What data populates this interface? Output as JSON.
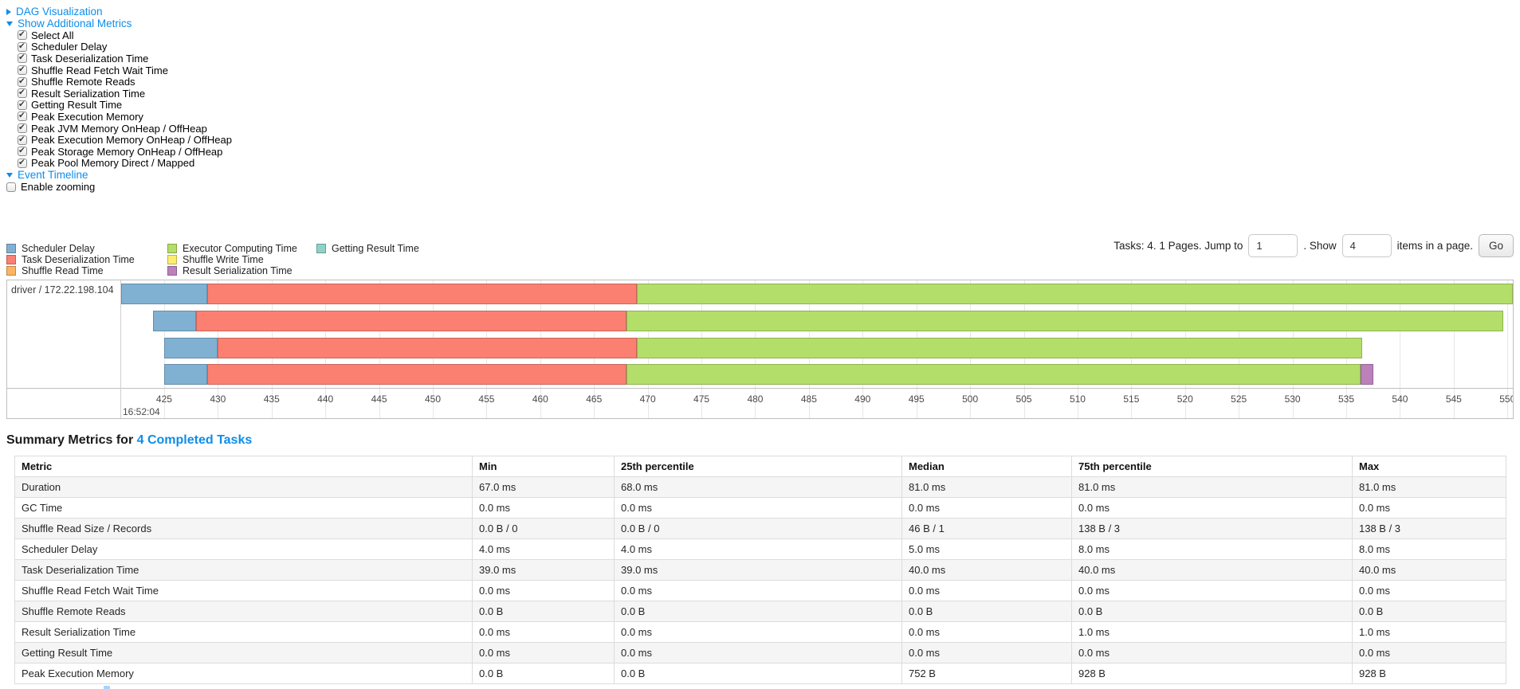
{
  "colors": {
    "link": "#0e8de9",
    "scheduler_delay": "#80B1D3",
    "task_deserialization": "#FB8072",
    "shuffle_read": "#FDB462",
    "executor_computing": "#B3DE69",
    "shuffle_write": "#FFED6F",
    "result_serialization": "#BC80BD",
    "getting_result": "#8DD3C7"
  },
  "controls": {
    "dag_label": "DAG Visualization",
    "metrics_label": "Show Additional Metrics",
    "metric_checkboxes": [
      "Select All",
      "Scheduler Delay",
      "Task Deserialization Time",
      "Shuffle Read Fetch Wait Time",
      "Shuffle Remote Reads",
      "Result Serialization Time",
      "Getting Result Time",
      "Peak Execution Memory",
      "Peak JVM Memory OnHeap / OffHeap",
      "Peak Execution Memory OnHeap / OffHeap",
      "Peak Storage Memory OnHeap / OffHeap",
      "Peak Pool Memory Direct / Mapped"
    ],
    "event_timeline_label": "Event Timeline",
    "enable_zooming_label": "Enable zooming"
  },
  "pagination": {
    "tasks_text": "Tasks: 4. 1 Pages. Jump to",
    "jump_value": "1",
    "between_text": ". Show",
    "show_value": "4",
    "after_text": "items in a page.",
    "go_label": "Go"
  },
  "legend": {
    "columns": [
      [
        {
          "label": "Scheduler Delay",
          "color_key": "scheduler_delay"
        },
        {
          "label": "Task Deserialization Time",
          "color_key": "task_deserialization"
        },
        {
          "label": "Shuffle Read Time",
          "color_key": "shuffle_read"
        }
      ],
      [
        {
          "label": "Executor Computing Time",
          "color_key": "executor_computing"
        },
        {
          "label": "Shuffle Write Time",
          "color_key": "shuffle_write"
        },
        {
          "label": "Result Serialization Time",
          "color_key": "result_serialization"
        }
      ],
      [
        {
          "label": "Getting Result Time",
          "color_key": "getting_result"
        }
      ]
    ]
  },
  "timeline": {
    "group_label": "driver / 172.22.198.104",
    "axis": {
      "domain_start": 421,
      "domain_end": 550.5,
      "first_tick": 425,
      "tick_interval": 5,
      "last_tick": 550,
      "date_label": "16:52:04"
    },
    "tasks": [
      {
        "segments": [
          {
            "type": "scheduler_delay",
            "start": 421,
            "end": 429
          },
          {
            "type": "task_deserialization",
            "start": 429,
            "end": 469
          },
          {
            "type": "executor_computing",
            "start": 469,
            "end": 551
          }
        ]
      },
      {
        "segments": [
          {
            "type": "scheduler_delay",
            "start": 424,
            "end": 428
          },
          {
            "type": "task_deserialization",
            "start": 428,
            "end": 468
          },
          {
            "type": "executor_computing",
            "start": 468,
            "end": 549.6
          }
        ]
      },
      {
        "segments": [
          {
            "type": "scheduler_delay",
            "start": 425,
            "end": 430
          },
          {
            "type": "task_deserialization",
            "start": 430,
            "end": 469
          },
          {
            "type": "executor_computing",
            "start": 469,
            "end": 536.5
          }
        ]
      },
      {
        "segments": [
          {
            "type": "scheduler_delay",
            "start": 425,
            "end": 429
          },
          {
            "type": "task_deserialization",
            "start": 429,
            "end": 468
          },
          {
            "type": "executor_computing",
            "start": 468,
            "end": 536.3
          },
          {
            "type": "result_serialization",
            "start": 536.3,
            "end": 537.5
          }
        ]
      }
    ]
  },
  "summary": {
    "title_prefix": "Summary Metrics for ",
    "title_link": "4 Completed Tasks",
    "table": {
      "headers": [
        "Metric",
        "Min",
        "25th percentile",
        "Median",
        "75th percentile",
        "Max"
      ],
      "rows": [
        {
          "metric": "Duration",
          "values": [
            "67.0 ms",
            "68.0 ms",
            "81.0 ms",
            "81.0 ms",
            "81.0 ms"
          ]
        },
        {
          "metric": "GC Time",
          "values": [
            "0.0 ms",
            "0.0 ms",
            "0.0 ms",
            "0.0 ms",
            "0.0 ms"
          ]
        },
        {
          "metric": "Shuffle Read Size / Records",
          "values": [
            "0.0 B / 0",
            "0.0 B / 0",
            "46 B / 1",
            "138 B / 3",
            "138 B / 3"
          ]
        },
        {
          "metric": "Scheduler Delay",
          "values": [
            "4.0 ms",
            "4.0 ms",
            "5.0 ms",
            "8.0 ms",
            "8.0 ms"
          ]
        },
        {
          "metric": "Task Deserialization Time",
          "values": [
            "39.0 ms",
            "39.0 ms",
            "40.0 ms",
            "40.0 ms",
            "40.0 ms"
          ]
        },
        {
          "metric": "Shuffle Read Fetch Wait Time",
          "values": [
            "0.0 ms",
            "0.0 ms",
            "0.0 ms",
            "0.0 ms",
            "0.0 ms"
          ]
        },
        {
          "metric": "Shuffle Remote Reads",
          "values": [
            "0.0 B",
            "0.0 B",
            "0.0 B",
            "0.0 B",
            "0.0 B"
          ]
        },
        {
          "metric": "Result Serialization Time",
          "values": [
            "0.0 ms",
            "0.0 ms",
            "0.0 ms",
            "1.0 ms",
            "1.0 ms"
          ]
        },
        {
          "metric": "Getting Result Time",
          "values": [
            "0.0 ms",
            "0.0 ms",
            "0.0 ms",
            "0.0 ms",
            "0.0 ms"
          ]
        },
        {
          "metric": "Peak Execution Memory",
          "values": [
            "0.0 B",
            "0.0 B",
            "752 B",
            "928 B",
            "928 B"
          ]
        }
      ]
    }
  }
}
